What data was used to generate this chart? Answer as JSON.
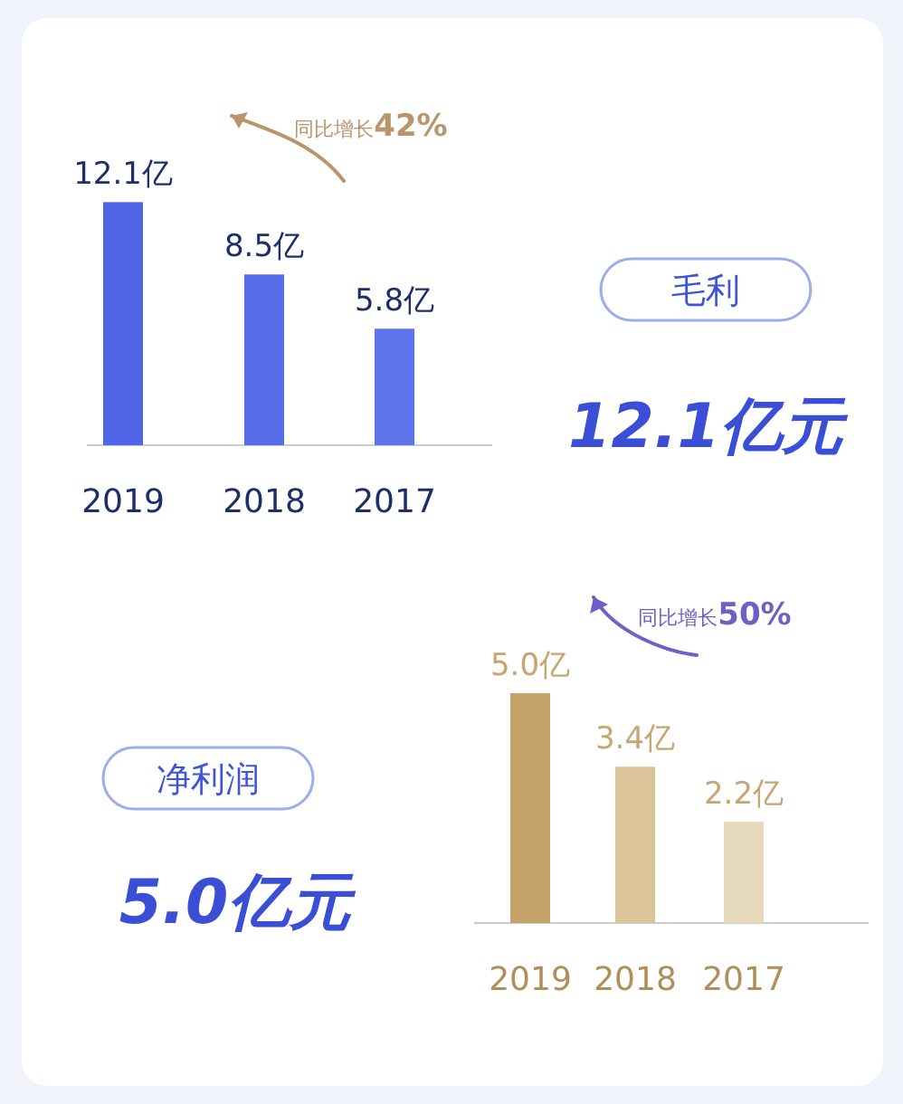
{
  "chart_data": [
    {
      "type": "bar",
      "categories": [
        "2019",
        "2018",
        "2017"
      ],
      "values": [
        12.1,
        8.5,
        5.8
      ],
      "colors": [
        "#4f66e6",
        "#566de8",
        "#5d74ea"
      ],
      "value_labels": [
        "12.1亿",
        "8.5亿",
        "5.8亿"
      ],
      "annotations": [
        "同比增长42%",
        "毛利",
        "12.1亿元"
      ]
    },
    {
      "type": "bar",
      "categories": [
        "2019",
        "2018",
        "2017"
      ],
      "values": [
        5.0,
        3.4,
        2.2
      ],
      "colors": [
        "#c4a26a",
        "#dcc59a",
        "#e6d9bb"
      ],
      "value_labels": [
        "5.0亿",
        "3.4亿",
        "2.2亿"
      ],
      "annotations": [
        "同比增长50%",
        "净利润",
        "5.0亿元"
      ]
    }
  ]
}
